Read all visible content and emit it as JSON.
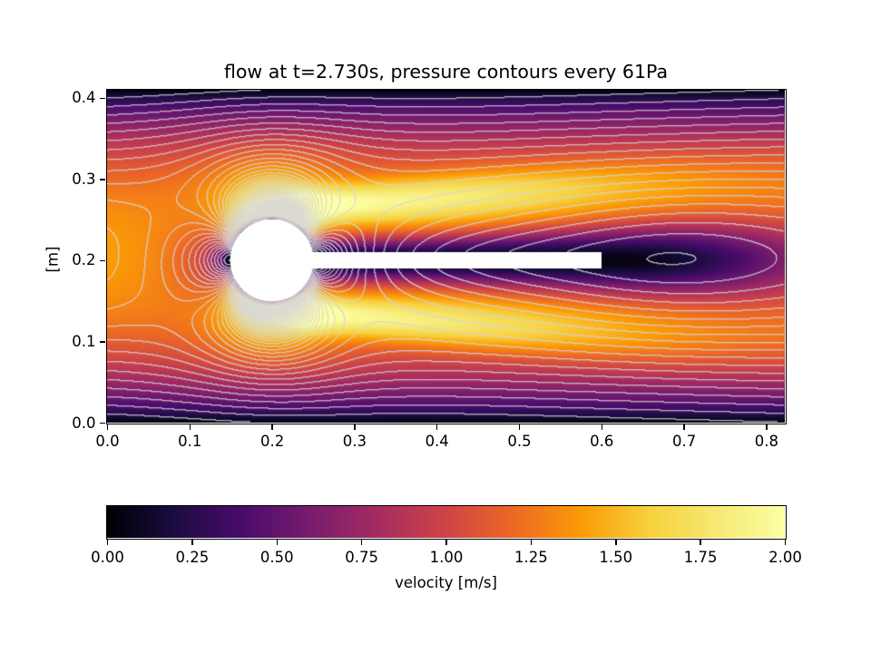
{
  "chart_data": {
    "type": "heatmap",
    "title": "flow at t=2.730s, pressure contours every 61Pa",
    "time_s": 2.73,
    "xlabel": "",
    "ylabel": "[m]",
    "xlim": [
      0.0,
      0.8227
    ],
    "ylim": [
      0.0,
      0.41
    ],
    "xtick_labels": [
      "0.0",
      "0.1",
      "0.2",
      "0.3",
      "0.4",
      "0.5",
      "0.6",
      "0.7",
      "0.8"
    ],
    "ytick_labels": [
      "0.0",
      "0.1",
      "0.2",
      "0.3",
      "0.4"
    ],
    "grid": false,
    "colormap": "inferno",
    "colormap_stops": [
      [
        0.0,
        0,
        0,
        4
      ],
      [
        0.1,
        27,
        12,
        65
      ],
      [
        0.2,
        74,
        12,
        107
      ],
      [
        0.3,
        120,
        28,
        109
      ],
      [
        0.4,
        165,
        44,
        96
      ],
      [
        0.5,
        207,
        68,
        70
      ],
      [
        0.6,
        237,
        105,
        37
      ],
      [
        0.7,
        251,
        155,
        6
      ],
      [
        0.8,
        247,
        209,
        61
      ],
      [
        0.9,
        246,
        233,
        115
      ],
      [
        1.0,
        252,
        255,
        164
      ]
    ],
    "colorbar": {
      "label": "velocity [m/s]",
      "min": 0.0,
      "max": 2.0,
      "tick_labels": [
        "0.00",
        "0.25",
        "0.50",
        "0.75",
        "1.00",
        "1.25",
        "1.50",
        "1.75",
        "2.00"
      ],
      "orientation": "horizontal"
    },
    "contours": {
      "quantity": "pressure",
      "interval_pa": 61,
      "line_color_rgb": [
        214,
        212,
        218
      ],
      "line_alpha": 0.78
    },
    "obstacle": {
      "circle": {
        "cx": 0.2,
        "cy": 0.2,
        "r": 0.05
      },
      "bar": {
        "x0": 0.2,
        "x1": 0.6,
        "y0": 0.19,
        "y1": 0.21
      },
      "fill": "#ffffff"
    },
    "render_model": {
      "u_max": 1.5,
      "profile_exponent": 0.8,
      "boundary_layer": 0.005,
      "wake": {
        "base_width": 0.018,
        "spread": 0.06,
        "strength": 0.97,
        "decay_start": 0.42,
        "decay_scale": 0.28
      },
      "jets": {
        "offset0": 0.062,
        "spread": 0.078,
        "width0": 0.022,
        "width_growth": 0.028,
        "amp": 0.72,
        "amp_decay": 0.42,
        "ramp": 0.04
      },
      "pressure": {
        "u_wall": 0.7,
        "u_gain": 0.8,
        "scale": 500,
        "offset": 1.1,
        "linear": 120,
        "bar_low": {
          "amp": 160,
          "wy": 0.045,
          "x0": 0.42,
          "wx": 0.22
        },
        "wake_low": {
          "amp": 230,
          "x0": 0.7,
          "wx": 0.2,
          "wy": 0.085
        }
      }
    }
  }
}
